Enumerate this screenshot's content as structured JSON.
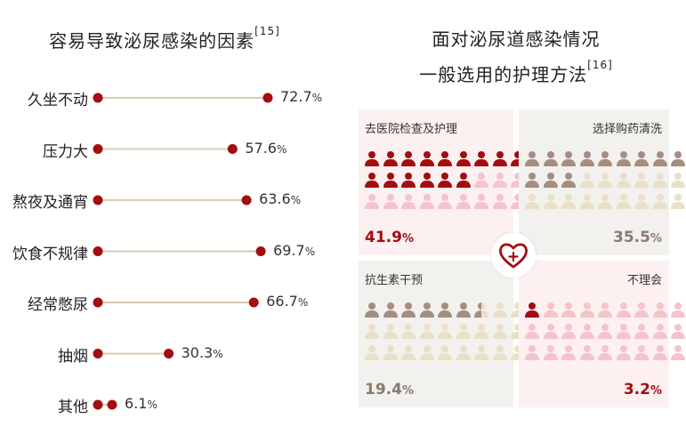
{
  "left_title": "容易导致泌尿感染的因素",
  "left_ref": "[15]",
  "right_title_line1": "面对泌尿道感染情况",
  "right_title_line2": "一般选用的护理方法",
  "right_ref": "[16]",
  "colors": {
    "dot": "#a30d10",
    "line": "#d8c9b5",
    "red_dark": "#a30d10",
    "red_light": "#f5c4c8",
    "brown_dark": "#a58d80",
    "beige": "#eae0c8",
    "pink_bg": "#fdf0f0",
    "gray_bg": "#f3f1ee"
  },
  "chart_data": [
    {
      "type": "lollipop",
      "categories": [
        "久坐不动",
        "压力大",
        "熬夜及通宵",
        "饮食不规律",
        "经常憋尿",
        "抽烟",
        "其他"
      ],
      "values": [
        72.7,
        57.6,
        63.6,
        69.7,
        66.7,
        30.3,
        6.1
      ],
      "labels": [
        "72.7",
        "57.6",
        "63.6",
        "69.7",
        "66.7",
        "30.3",
        "6.1"
      ],
      "unit": "%"
    },
    {
      "type": "pictogram",
      "panels": [
        {
          "label": "去医院检查及护理",
          "value": 41.9,
          "value_label": "41.9",
          "unit": "%",
          "filled": 15,
          "total": 27,
          "theme": "red"
        },
        {
          "label": "选择购药清洗",
          "value": 35.5,
          "value_label": "35.5",
          "unit": "%",
          "filled": 12,
          "total": 27,
          "theme": "brown"
        },
        {
          "label": "抗生素干预",
          "value": 19.4,
          "value_label": "19.4",
          "unit": "%",
          "filled": 6.5,
          "total": 27,
          "theme": "brown"
        },
        {
          "label": "不理会",
          "value": 3.2,
          "value_label": "3.2",
          "unit": "%",
          "filled": 1,
          "total": 27,
          "theme": "red"
        }
      ]
    }
  ],
  "center_icon": "heart-plus-icon"
}
